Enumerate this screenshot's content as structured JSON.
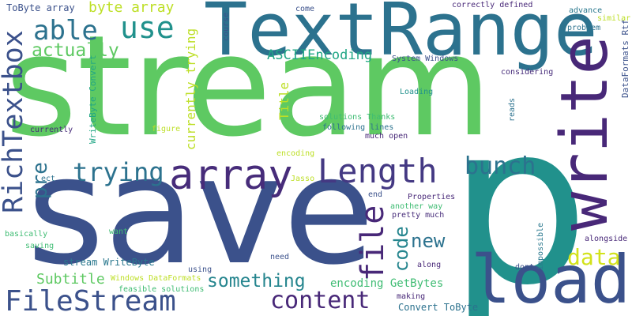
{
  "words": [
    {
      "text": "stream",
      "color": "#5ec962"
    },
    {
      "text": "save",
      "color": "#3b518b"
    },
    {
      "text": "p",
      "color": "#21918c"
    },
    {
      "text": "TextRange",
      "color": "#2c728e"
    },
    {
      "text": "load",
      "color": "#3b518b"
    },
    {
      "text": "write",
      "color": "#482878"
    },
    {
      "text": "RichTextbox",
      "color": "#3b518b"
    },
    {
      "text": "array",
      "color": "#472c7a"
    },
    {
      "text": "Length",
      "color": "#443983"
    },
    {
      "text": "file",
      "color": "#482878"
    },
    {
      "text": "use",
      "color": "#21918c"
    },
    {
      "text": "able",
      "color": "#2c728e"
    },
    {
      "text": "trying",
      "color": "#2c728e"
    },
    {
      "text": "bunch",
      "color": "#2c728e"
    },
    {
      "text": "FileStream",
      "color": "#3b518b"
    },
    {
      "text": "content",
      "color": "#482878"
    },
    {
      "text": "data",
      "color": "#d2e21b"
    },
    {
      "text": "code",
      "color": "#25858e"
    },
    {
      "text": "new",
      "color": "#2c728e"
    },
    {
      "text": "pre",
      "color": "#2c728e"
    },
    {
      "text": "something",
      "color": "#25858e"
    },
    {
      "text": "actually",
      "color": "#5ec962"
    },
    {
      "text": "byte array",
      "color": "#bddf26"
    },
    {
      "text": "currently trying",
      "color": "#bddf26"
    },
    {
      "text": "ASCIIEncoding",
      "color": "#21a685"
    },
    {
      "text": "Subtitle",
      "color": "#5ec962"
    },
    {
      "text": "Title",
      "color": "#bddf26"
    },
    {
      "text": "encoding GetBytes",
      "color": "#3fbc73"
    },
    {
      "text": "stream WriteByte",
      "color": "#2a788e"
    },
    {
      "text": "Convert ToByte",
      "color": "#2c728e"
    },
    {
      "text": "WriteByte Convert",
      "color": "#21a685"
    },
    {
      "text": "ToByte array",
      "color": "#3b518b"
    },
    {
      "text": "correctly defined",
      "color": "#482878"
    },
    {
      "text": "System Windows",
      "color": "#3b518b"
    },
    {
      "text": "Loading",
      "color": "#21918c"
    },
    {
      "text": "solutions Thanks",
      "color": "#3fbc73"
    },
    {
      "text": "following lines",
      "color": "#2c728e"
    },
    {
      "text": "much open",
      "color": "#482878"
    },
    {
      "text": "encoding",
      "color": "#bddf26"
    },
    {
      "text": "Jasso",
      "color": "#bddf26"
    },
    {
      "text": "end",
      "color": "#3b518b"
    },
    {
      "text": "Properties",
      "color": "#482878"
    },
    {
      "text": "another way",
      "color": "#3fbc73"
    },
    {
      "text": "pretty much",
      "color": "#472c7a"
    },
    {
      "text": "come",
      "color": "#3b518b"
    },
    {
      "text": "advance",
      "color": "#2a788e"
    },
    {
      "text": "similar",
      "color": "#bddf26"
    },
    {
      "text": "problem",
      "color": "#2c728e"
    },
    {
      "text": "DataFormats Rtf",
      "color": "#3b518b"
    },
    {
      "text": "considering",
      "color": "#472c7a"
    },
    {
      "text": "reads",
      "color": "#2c728e"
    },
    {
      "text": "alongside",
      "color": "#482878"
    },
    {
      "text": "impossible",
      "color": "#2a788e"
    },
    {
      "text": "dont",
      "color": "#3b518b"
    },
    {
      "text": "along",
      "color": "#482878"
    },
    {
      "text": "need",
      "color": "#3b518b"
    },
    {
      "text": "making",
      "color": "#482878"
    },
    {
      "text": "using",
      "color": "#3b518b"
    },
    {
      "text": "Windows DataFormats",
      "color": "#bddf26"
    },
    {
      "text": "feasible solutions",
      "color": "#3fbc73"
    },
    {
      "text": "figure",
      "color": "#bddf26"
    },
    {
      "text": "currently",
      "color": "#472c7a"
    },
    {
      "text": "course",
      "color": "#3b518b"
    },
    {
      "text": "ect",
      "color": "#2c728e"
    },
    {
      "text": "want",
      "color": "#3fbc73"
    },
    {
      "text": "basically",
      "color": "#3fbc73"
    },
    {
      "text": "saving",
      "color": "#3fbc73"
    }
  ]
}
